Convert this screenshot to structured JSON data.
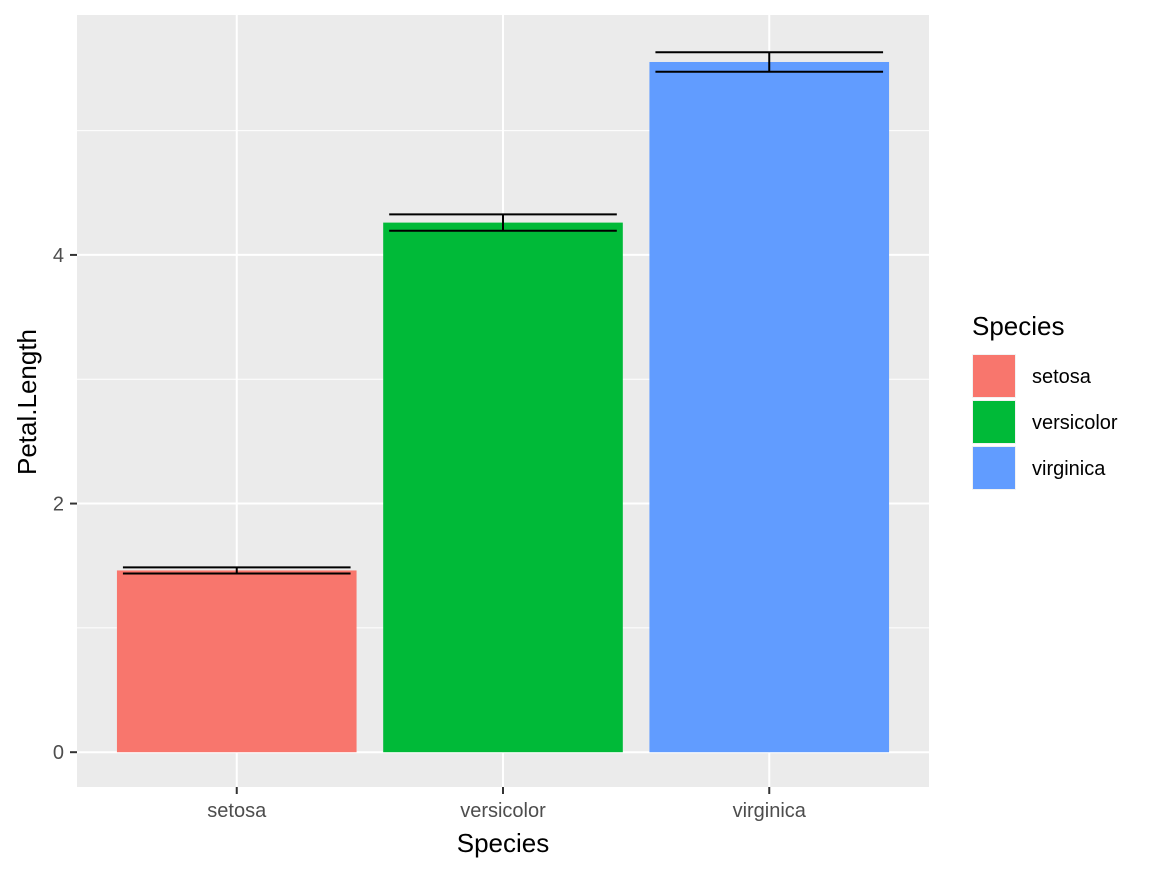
{
  "chart_data": {
    "type": "bar",
    "categories": [
      "setosa",
      "versicolor",
      "virginica"
    ],
    "values": [
      1.462,
      4.26,
      5.552
    ],
    "error_bars": [
      {
        "lower": 1.437,
        "upper": 1.487
      },
      {
        "lower": 4.194,
        "upper": 4.326
      },
      {
        "lower": 5.474,
        "upper": 5.63
      }
    ],
    "colors": [
      "#F8766D",
      "#00BA38",
      "#619CFF"
    ],
    "xlabel": "Species",
    "ylabel": "Petal.Length",
    "ylim": [
      -0.28,
      5.93
    ],
    "y_ticks": [
      0,
      2,
      4
    ],
    "y_tick_labels": [
      "0",
      "2",
      "4"
    ],
    "grid": true,
    "panel_background": "#EBEBEB",
    "legend": {
      "title": "Species",
      "placement": "right",
      "entries": [
        "setosa",
        "versicolor",
        "virginica"
      ]
    }
  }
}
